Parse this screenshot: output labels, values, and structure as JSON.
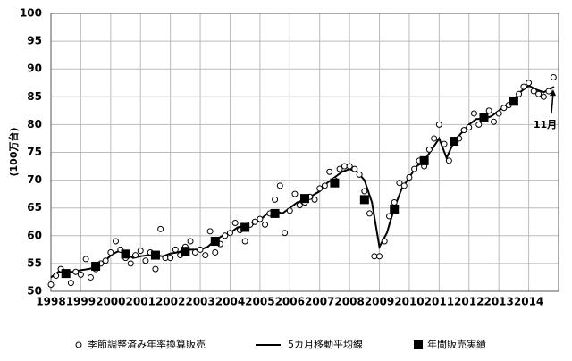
{
  "chart_data": {
    "type": "scatter",
    "ylabel": "(100万台)",
    "xlim": [
      1998,
      2015
    ],
    "xticks": [
      1998,
      1999,
      2000,
      2001,
      2002,
      2003,
      2004,
      2005,
      2006,
      2007,
      2008,
      2009,
      2010,
      2011,
      2012,
      2013,
      2014
    ],
    "ylim": [
      50,
      100
    ],
    "yticks": [
      50,
      55,
      60,
      65,
      70,
      75,
      80,
      85,
      90,
      95,
      100
    ],
    "grid": true,
    "annotation": "11月",
    "series": [
      {
        "name": "季節調整済み年率換算販売",
        "type": "scatter",
        "color": "#000000",
        "x": [
          1998,
          1998.17,
          1998.33,
          1998.5,
          1998.67,
          1998.83,
          1999,
          1999.17,
          1999.33,
          1999.5,
          1999.67,
          1999.83,
          2000,
          2000.17,
          2000.33,
          2000.5,
          2000.67,
          2000.83,
          2001,
          2001.17,
          2001.33,
          2001.5,
          2001.67,
          2001.83,
          2002,
          2002.17,
          2002.33,
          2002.5,
          2002.67,
          2002.83,
          2003,
          2003.17,
          2003.33,
          2003.5,
          2003.67,
          2003.83,
          2004,
          2004.17,
          2004.33,
          2004.5,
          2004.67,
          2004.83,
          2005,
          2005.17,
          2005.33,
          2005.5,
          2005.67,
          2005.83,
          2006,
          2006.17,
          2006.33,
          2006.5,
          2006.67,
          2006.83,
          2007,
          2007.17,
          2007.33,
          2007.5,
          2007.67,
          2007.83,
          2008,
          2008.17,
          2008.33,
          2008.5,
          2008.67,
          2008.83,
          2009,
          2009.17,
          2009.33,
          2009.5,
          2009.67,
          2009.83,
          2010,
          2010.17,
          2010.33,
          2010.5,
          2010.67,
          2010.83,
          2011,
          2011.17,
          2011.33,
          2011.5,
          2011.67,
          2011.83,
          2012,
          2012.17,
          2012.33,
          2012.5,
          2012.67,
          2012.83,
          2013,
          2013.17,
          2013.33,
          2013.5,
          2013.67,
          2013.83,
          2014,
          2014.17,
          2014.33,
          2014.5,
          2014.67,
          2014.83
        ],
        "values": [
          51.2,
          52.8,
          54,
          53,
          51.5,
          53.5,
          53,
          55.8,
          52.5,
          54,
          55,
          55.5,
          57,
          59,
          57.5,
          56,
          55,
          56.5,
          57.3,
          55.5,
          57,
          54,
          61.2,
          56,
          56,
          57.5,
          56.5,
          58,
          59,
          57,
          57.5,
          56.5,
          60.8,
          57,
          58.5,
          60,
          60.5,
          62.3,
          61,
          59,
          62,
          62.5,
          63,
          62,
          64,
          66.5,
          69,
          60.5,
          64.5,
          67.5,
          65.5,
          66,
          67,
          66.5,
          68.5,
          69,
          71.5,
          70,
          72,
          72.5,
          72.5,
          72,
          71,
          68,
          64,
          56.3,
          56.3,
          59,
          63.5,
          66,
          69.5,
          69,
          70.5,
          72,
          73.5,
          72.5,
          75.5,
          77.5,
          80,
          76.5,
          73.5,
          77,
          77.5,
          79,
          79.5,
          82,
          80,
          81,
          82.5,
          80.5,
          82,
          83,
          83.5,
          84.5,
          85.5,
          86.8,
          87.5,
          86,
          85.5,
          85,
          86,
          88.5
        ]
      },
      {
        "name": "5カ月移動平均線",
        "type": "line",
        "color": "#000000",
        "x": [
          1998,
          1998.25,
          1998.5,
          1998.75,
          1999,
          1999.25,
          1999.5,
          1999.75,
          2000,
          2000.25,
          2000.5,
          2000.75,
          2001,
          2001.25,
          2001.5,
          2001.75,
          2002,
          2002.25,
          2002.5,
          2002.75,
          2003,
          2003.25,
          2003.5,
          2003.75,
          2004,
          2004.25,
          2004.5,
          2004.75,
          2005,
          2005.25,
          2005.5,
          2005.75,
          2006,
          2006.25,
          2006.5,
          2006.75,
          2007,
          2007.25,
          2007.5,
          2007.75,
          2008,
          2008.25,
          2008.5,
          2008.75,
          2009,
          2009.25,
          2009.5,
          2009.75,
          2010,
          2010.25,
          2010.5,
          2010.75,
          2011,
          2011.25,
          2011.5,
          2011.75,
          2012,
          2012.25,
          2012.5,
          2012.75,
          2013,
          2013.25,
          2013.5,
          2013.75,
          2014,
          2014.25,
          2014.5,
          2014.75,
          2014.85
        ],
        "values": [
          52.5,
          53.5,
          53.5,
          53.5,
          53.8,
          54,
          54.3,
          55,
          56.5,
          57.2,
          56.8,
          56,
          56.3,
          56.5,
          56.5,
          56.3,
          56.8,
          57,
          57.5,
          57.5,
          57.5,
          58,
          59.2,
          60,
          60.5,
          61.5,
          61.8,
          62,
          62.8,
          64,
          64.5,
          64,
          65,
          66,
          66.5,
          67.2,
          68,
          69.5,
          70.5,
          71.5,
          72,
          71.5,
          70,
          66,
          58,
          60.5,
          65,
          68.5,
          70.5,
          72.5,
          73.5,
          75.5,
          77.5,
          74,
          77,
          78.5,
          80,
          81,
          81,
          81.5,
          82.5,
          83.5,
          84.5,
          86,
          87,
          86.3,
          85.8,
          86.5,
          86.8
        ]
      },
      {
        "name": "年間販売実績",
        "type": "square",
        "color": "#000000",
        "x": [
          1998.5,
          1999.5,
          2000.5,
          2001.5,
          2002.5,
          2003.5,
          2004.5,
          2005.5,
          2006.5,
          2007.5,
          2008.5,
          2009.5,
          2010.5,
          2011.5,
          2012.5,
          2013.5
        ],
        "values": [
          53.2,
          54.5,
          56.7,
          56.5,
          57.2,
          59,
          61.5,
          64,
          66.7,
          69.5,
          66.5,
          64.8,
          73.5,
          77,
          81.2,
          84.2
        ]
      }
    ]
  }
}
